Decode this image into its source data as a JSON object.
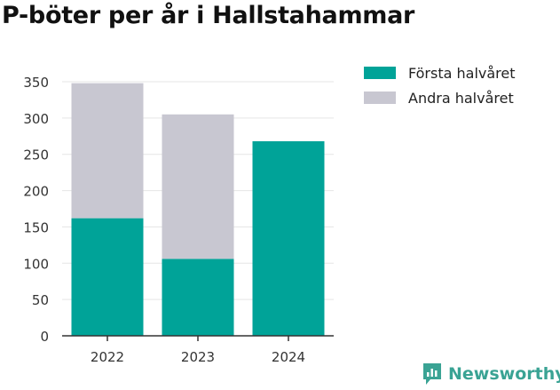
{
  "title": "P-böter per år i Hallstahammar",
  "brand": {
    "name": "Newsworthy",
    "color": "#3aa394",
    "icon": "newsworthy-logo-icon"
  },
  "colors": {
    "primary": "#00a398",
    "secondary": "#c8c7d1",
    "axis": "#333333",
    "grid": "#e5e5e5",
    "tick_text": "#333333"
  },
  "chart_data": {
    "type": "bar",
    "stacked": true,
    "title": "P-böter per år i Hallstahammar",
    "xlabel": "",
    "ylabel": "",
    "categories": [
      "2022",
      "2023",
      "2024"
    ],
    "series": [
      {
        "name": "Första halvåret",
        "values": [
          162,
          106,
          268
        ],
        "color": "#00a398"
      },
      {
        "name": "Andra halvåret",
        "values": [
          186,
          199,
          0
        ],
        "color": "#c8c7d1"
      }
    ],
    "ylim": [
      0,
      350
    ],
    "yticks": [
      0,
      50,
      100,
      150,
      200,
      250,
      300,
      350
    ],
    "grid": true,
    "legend_position": "right"
  }
}
